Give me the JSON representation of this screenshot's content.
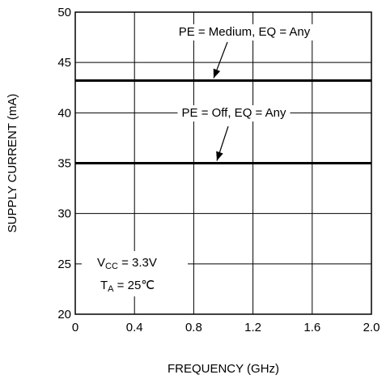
{
  "chart_data": {
    "type": "line",
    "xlabel": "FREQUENCY (GHz)",
    "ylabel": "SUPPLY CURRENT (mA)",
    "xlim": [
      0,
      2.0
    ],
    "ylim": [
      20,
      50
    ],
    "xticks": [
      0,
      0.4,
      0.8,
      1.2,
      1.6,
      2.0
    ],
    "xtick_labels": [
      "0",
      "0.4",
      "0.8",
      "1.2",
      "1.6",
      "2.0"
    ],
    "yticks": [
      20,
      25,
      30,
      35,
      40,
      45,
      50
    ],
    "ytick_labels": [
      "20",
      "25",
      "30",
      "35",
      "40",
      "45",
      "50"
    ],
    "grid": true,
    "series": [
      {
        "name": "PE = Medium, EQ = Any",
        "x": [
          0,
          2.0
        ],
        "y": [
          43.2,
          43.2
        ]
      },
      {
        "name": "PE = Off, EQ = Any",
        "x": [
          0,
          2.0
        ],
        "y": [
          35.0,
          35.0
        ]
      }
    ],
    "annotations": {
      "vcc": {
        "main": "V",
        "sub": "CC",
        "rest": " = 3.3V"
      },
      "ta": {
        "main": "T",
        "sub": "A",
        "rest": " = 25℃"
      }
    }
  }
}
